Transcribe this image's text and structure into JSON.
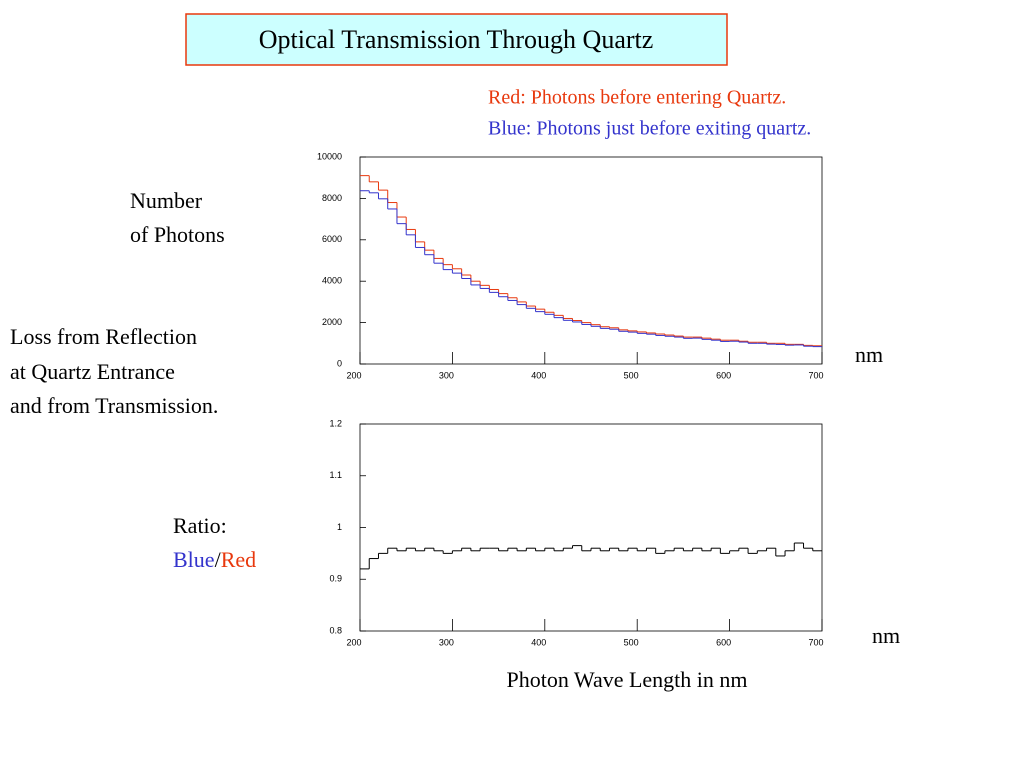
{
  "title": "Optical Transmission Through Quartz",
  "annotation": [
    "Loss from Reflection",
    "at Quartz Entrance",
    "and  from Transmission."
  ],
  "chart_data": [
    {
      "type": "histogram",
      "ylabel": [
        "Number",
        "of Photons"
      ],
      "xunit": "nm",
      "bins": [
        200,
        210,
        220,
        230,
        240,
        250,
        260,
        270,
        280,
        290,
        300,
        310,
        320,
        330,
        340,
        350,
        360,
        370,
        380,
        390,
        400,
        410,
        420,
        430,
        440,
        450,
        460,
        470,
        480,
        490,
        500,
        510,
        520,
        530,
        540,
        550,
        560,
        570,
        580,
        590,
        600,
        610,
        620,
        630,
        640,
        650,
        660,
        670,
        680,
        690,
        700
      ],
      "series": [
        {
          "name": "Red: Photons before entering Quartz.",
          "color": "#e8380d",
          "values": [
            9100,
            8800,
            8400,
            7800,
            7100,
            6500,
            5900,
            5500,
            5100,
            4800,
            4600,
            4300,
            4000,
            3800,
            3600,
            3400,
            3200,
            3000,
            2800,
            2650,
            2500,
            2350,
            2200,
            2100,
            2000,
            1900,
            1800,
            1750,
            1650,
            1600,
            1550,
            1500,
            1450,
            1400,
            1350,
            1300,
            1300,
            1250,
            1200,
            1150,
            1150,
            1100,
            1050,
            1050,
            1000,
            1000,
            950,
            950,
            900,
            880
          ]
        },
        {
          "name": "Blue: Photons just before exiting quartz.",
          "color": "#3333cc",
          "values": [
            8370,
            8270,
            7980,
            7490,
            6780,
            6240,
            5630,
            5280,
            4870,
            4560,
            4390,
            4130,
            3820,
            3650,
            3460,
            3250,
            3070,
            2870,
            2690,
            2530,
            2400,
            2240,
            2110,
            2030,
            1910,
            1820,
            1720,
            1680,
            1580,
            1540,
            1480,
            1440,
            1380,
            1340,
            1300,
            1240,
            1250,
            1190,
            1150,
            1090,
            1100,
            1060,
            1000,
            1000,
            960,
            945,
            910,
            920,
            860,
            840
          ]
        }
      ],
      "xlim": [
        200,
        700
      ],
      "xticks": [
        200,
        300,
        400,
        500,
        600,
        700
      ],
      "ylim": [
        0,
        10000
      ],
      "yticks": [
        0,
        2000,
        4000,
        6000,
        8000,
        10000
      ]
    },
    {
      "type": "histogram",
      "ylabel": "Ratio:",
      "ylabel_ratio": [
        "Blue",
        "/",
        "Red"
      ],
      "ylabel_ratio_colors": [
        "#3333cc",
        "#000000",
        "#e8380d"
      ],
      "xunit": "nm",
      "xlabel": "Photon Wave Length in nm",
      "bins": [
        200,
        210,
        220,
        230,
        240,
        250,
        260,
        270,
        280,
        290,
        300,
        310,
        320,
        330,
        340,
        350,
        360,
        370,
        380,
        390,
        400,
        410,
        420,
        430,
        440,
        450,
        460,
        470,
        480,
        490,
        500,
        510,
        520,
        530,
        540,
        550,
        560,
        570,
        580,
        590,
        600,
        610,
        620,
        630,
        640,
        650,
        660,
        670,
        680,
        690,
        700
      ],
      "series": [
        {
          "color": "#000000",
          "values": [
            0.92,
            0.94,
            0.95,
            0.96,
            0.955,
            0.96,
            0.955,
            0.96,
            0.955,
            0.95,
            0.955,
            0.96,
            0.955,
            0.96,
            0.96,
            0.955,
            0.96,
            0.955,
            0.96,
            0.955,
            0.96,
            0.955,
            0.96,
            0.965,
            0.955,
            0.96,
            0.955,
            0.96,
            0.955,
            0.96,
            0.955,
            0.96,
            0.95,
            0.955,
            0.96,
            0.955,
            0.96,
            0.955,
            0.96,
            0.95,
            0.955,
            0.96,
            0.95,
            0.955,
            0.96,
            0.945,
            0.955,
            0.97,
            0.96,
            0.955
          ]
        }
      ],
      "xlim": [
        200,
        700
      ],
      "xticks": [
        200,
        300,
        400,
        500,
        600,
        700
      ],
      "ylim": [
        0.8,
        1.2
      ],
      "yticks": [
        0.8,
        0.9,
        1,
        1.1,
        1.2
      ]
    }
  ]
}
